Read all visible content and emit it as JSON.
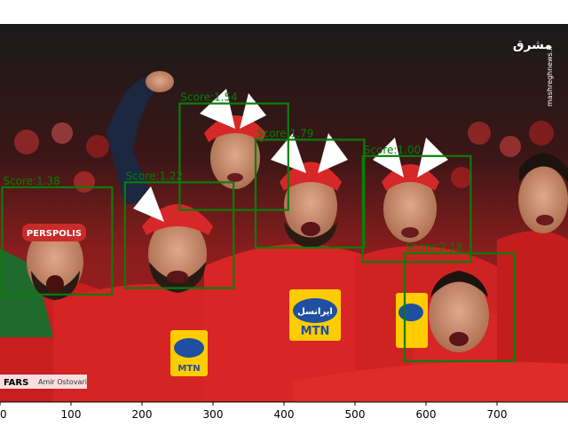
{
  "image": {
    "scene": "football fans in red jerseys and hats cheering in a stadium",
    "watermark_top_right": "mashreghnews.ir",
    "credit_logo": "FARS",
    "credit_name": "Amir Ostovari",
    "jersey_sponsor": "MTN",
    "jersey_sponsor_fa": "ایرانسل",
    "scarf_text": "PERSPOLIS"
  },
  "axis": {
    "x_ticks": [
      "0",
      "100",
      "200",
      "300",
      "400",
      "500",
      "600",
      "700"
    ],
    "x_range": [
      0,
      800
    ]
  },
  "detections": [
    {
      "label": "Score:1.54",
      "x0": 253,
      "y0": 112,
      "x1": 406,
      "y1": 262
    },
    {
      "label": "Score:1.79",
      "x0": 360,
      "y0": 163,
      "x1": 513,
      "y1": 315
    },
    {
      "label": "Score:1.00",
      "x0": 511,
      "y0": 186,
      "x1": 663,
      "y1": 335
    },
    {
      "label": "Score:1.22",
      "x0": 176,
      "y0": 223,
      "x1": 329,
      "y1": 372
    },
    {
      "label": "Score:1.38",
      "x0": 3,
      "y0": 230,
      "x1": 158,
      "y1": 381
    },
    {
      "label": "Score:2.18",
      "x0": 570,
      "y0": 323,
      "x1": 725,
      "y1": 475
    }
  ],
  "colors": {
    "box": "#0a7d0a",
    "label": "#008000",
    "jersey_red": "#d21f1f"
  }
}
